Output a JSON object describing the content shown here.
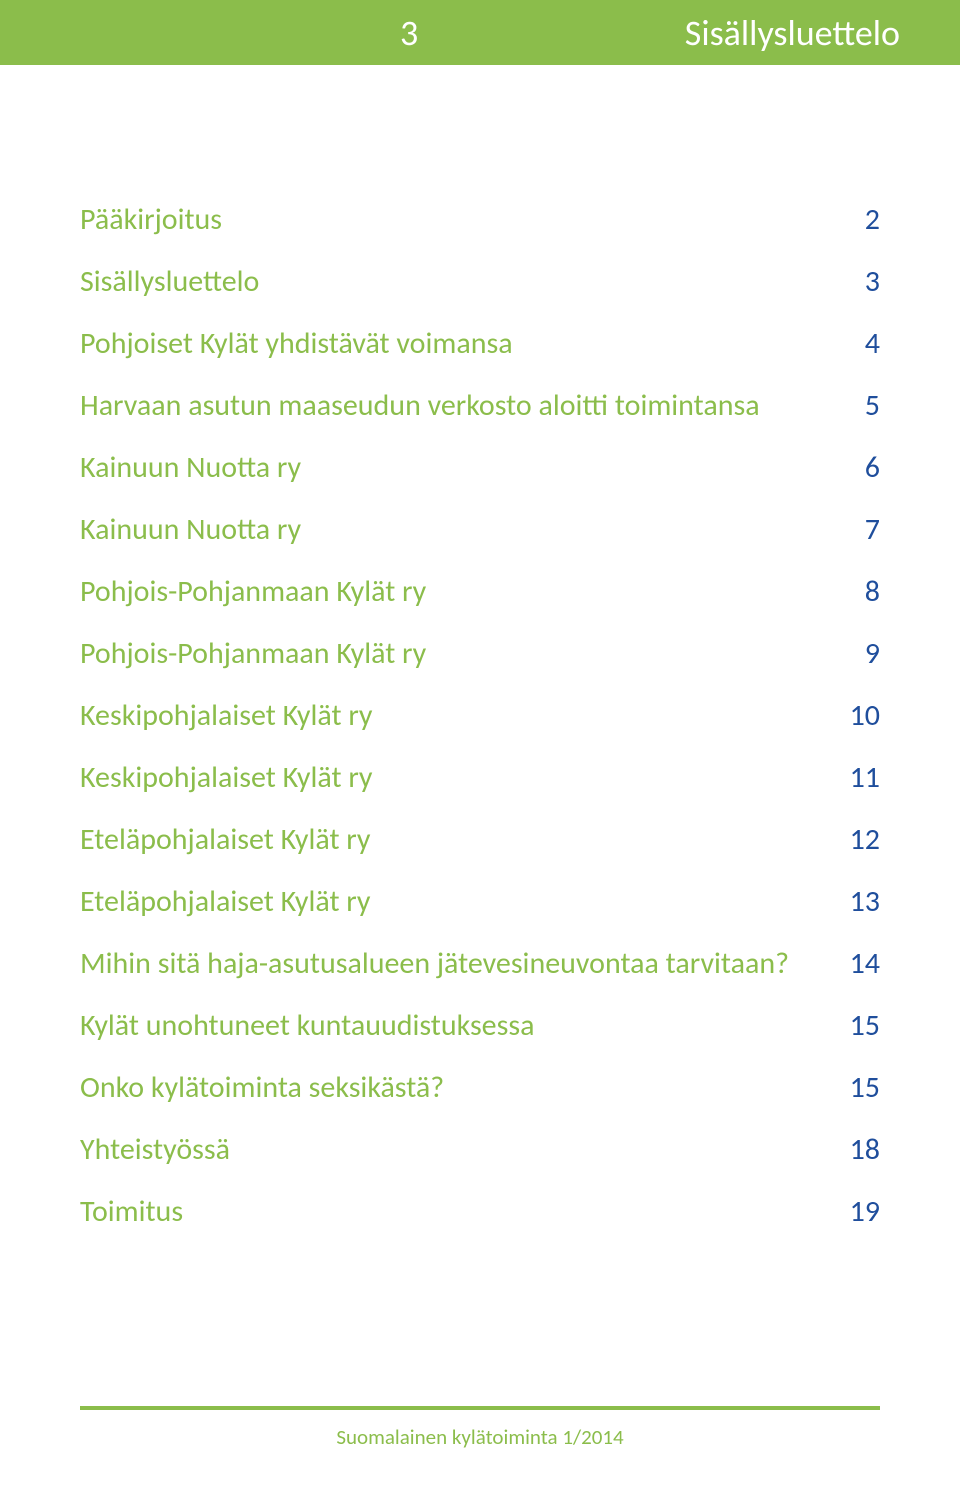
{
  "colors": {
    "header_bg": "#8bbd4b",
    "header_text": "#ffffff",
    "title_color": "#8bbd4b",
    "page_color": "#1f4e9c",
    "footer_rule": "#8bbd4b",
    "footer_text": "#8bbd4b",
    "body_bg": "#ffffff"
  },
  "typography": {
    "header_fontsize": 36,
    "toc_fontsize": 30,
    "footer_fontsize": 21,
    "font_family": "Calibri"
  },
  "header": {
    "page_number": "3",
    "title": "Sisällysluettelo"
  },
  "toc": {
    "items": [
      {
        "title": "Pääkirjoitus",
        "page": "2"
      },
      {
        "title": "Sisällysluettelo",
        "page": "3"
      },
      {
        "title": "Pohjoiset Kylät yhdistävät voimansa",
        "page": "4"
      },
      {
        "title": "Harvaan asutun maaseudun verkosto aloitti toimintansa",
        "page": "5"
      },
      {
        "title": "Kainuun Nuotta ry",
        "page": "6"
      },
      {
        "title": "Kainuun Nuotta ry",
        "page": "7"
      },
      {
        "title": "Pohjois-Pohjanmaan Kylät ry",
        "page": "8"
      },
      {
        "title": "Pohjois-Pohjanmaan Kylät ry",
        "page": "9"
      },
      {
        "title": "Keskipohjalaiset Kylät ry",
        "page": "10"
      },
      {
        "title": "Keskipohjalaiset Kylät ry",
        "page": "11"
      },
      {
        "title": "Eteläpohjalaiset Kylät ry",
        "page": "12"
      },
      {
        "title": "Eteläpohjalaiset Kylät ry",
        "page": "13"
      },
      {
        "title": "Mihin sitä haja-asutusalueen jätevesineuvontaa tarvitaan?",
        "page": "14"
      },
      {
        "title": "Kylät unohtuneet kuntauudistuksessa",
        "page": "15"
      },
      {
        "title": "Onko kylätoiminta seksikästä?",
        "page": "15"
      },
      {
        "title": "Yhteistyössä",
        "page": "18"
      },
      {
        "title": "Toimitus",
        "page": "19"
      }
    ]
  },
  "footer": {
    "text": "Suomalainen kylätoiminta 1/2014"
  }
}
